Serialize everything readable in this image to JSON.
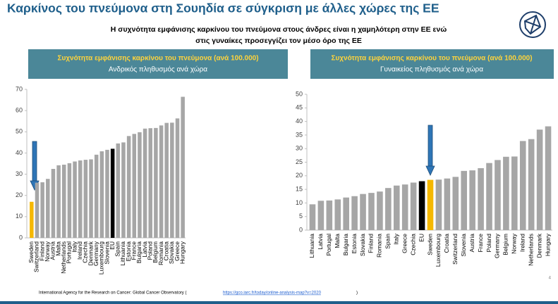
{
  "header": {
    "title": "Καρκίνος του πνεύμονα στη Σουηδία σε σύγκριση με άλλες χώρες της ΕΕ",
    "subtitle_lines": [
      "Η συχνότητα εμφάνισης καρκίνου του πνεύμονα στους άνδρες είναι η χαμηλότερη στην ΕΕ ενώ",
      "στις γυναίκες προσεγγίζει τον μέσο όρο της ΕΕ"
    ]
  },
  "chart_data": [
    {
      "type": "bar",
      "title": "Συχνότητα εμφάνισης καρκίνου του πνεύμονα (ανά 100.000)",
      "subtitle": "Ανδρικός πληθυσμός ανά χώρα",
      "categories": [
        "Sweden",
        "Switzerland",
        "Finland",
        "Norway",
        "Austria",
        "Malta",
        "Netherlands",
        "Portugal",
        "Italy",
        "Ireland",
        "Czechia",
        "Denmark",
        "Germany",
        "Luxembourg",
        "Slovenia",
        "EU",
        "Spain",
        "Lithuania",
        "Estonia",
        "France",
        "Bulgaria",
        "Latvia",
        "Poland",
        "Belgium",
        "Romania",
        "Croatia",
        "Slovakia",
        "Greece",
        "Hungary"
      ],
      "values": [
        17,
        26,
        26.2,
        27.8,
        32.5,
        34.2,
        34.5,
        35.2,
        36,
        36.5,
        36.8,
        37,
        39.2,
        40.8,
        41.5,
        42,
        44.5,
        45,
        48,
        49,
        49.8,
        51.5,
        51.7,
        51.8,
        53,
        54.2,
        54.3,
        56.3,
        66.5
      ],
      "colors": [
        "#f5b800",
        "#a6a6a6",
        "#a6a6a6",
        "#a6a6a6",
        "#a6a6a6",
        "#a6a6a6",
        "#a6a6a6",
        "#a6a6a6",
        "#a6a6a6",
        "#a6a6a6",
        "#a6a6a6",
        "#a6a6a6",
        "#a6a6a6",
        "#a6a6a6",
        "#a6a6a6",
        "#000000",
        "#a6a6a6",
        "#a6a6a6",
        "#a6a6a6",
        "#a6a6a6",
        "#a6a6a6",
        "#a6a6a6",
        "#a6a6a6",
        "#a6a6a6",
        "#a6a6a6",
        "#a6a6a6",
        "#a6a6a6",
        "#a6a6a6",
        "#a6a6a6"
      ],
      "ylim": [
        0,
        70
      ],
      "yticks": [
        0,
        10,
        20,
        30,
        40,
        50,
        60,
        70
      ],
      "grid": false
    },
    {
      "type": "bar",
      "title": "Συχνότητα εμφάνισης καρκίνου του πνεύμονα (ανά 100.000)",
      "subtitle": "Γυναικείος πληθυσμός ανά χώρα",
      "categories": [
        "Lithuania",
        "Latvia",
        "Portugal",
        "Malta",
        "Bulgaria",
        "Estonia",
        "Slovakia",
        "Finland",
        "Romania",
        "Spain",
        "Italy",
        "Greece",
        "Czechia",
        "EU",
        "Sweden",
        "Luxembourg",
        "Croatia",
        "Switzerland",
        "Slovenia",
        "Austria",
        "France",
        "Poland",
        "Germany",
        "Belgium",
        "Norway",
        "Ireland",
        "Netherlands",
        "Denmark",
        "Hungary"
      ],
      "values": [
        9.5,
        10.8,
        10.9,
        11.3,
        12,
        12.5,
        13.3,
        13.7,
        14.2,
        15.5,
        16.4,
        16.8,
        17.5,
        18,
        18.5,
        18.6,
        19,
        19.6,
        21.8,
        22,
        22.8,
        24.7,
        25.8,
        27,
        27.1,
        32.8,
        33.5,
        37,
        38.2
      ],
      "colors": [
        "#a6a6a6",
        "#a6a6a6",
        "#a6a6a6",
        "#a6a6a6",
        "#a6a6a6",
        "#a6a6a6",
        "#a6a6a6",
        "#a6a6a6",
        "#a6a6a6",
        "#a6a6a6",
        "#a6a6a6",
        "#a6a6a6",
        "#a6a6a6",
        "#000000",
        "#f5b800",
        "#a6a6a6",
        "#a6a6a6",
        "#a6a6a6",
        "#a6a6a6",
        "#a6a6a6",
        "#a6a6a6",
        "#a6a6a6",
        "#a6a6a6",
        "#a6a6a6",
        "#a6a6a6",
        "#a6a6a6",
        "#a6a6a6",
        "#a6a6a6",
        "#a6a6a6"
      ],
      "ylim": [
        0,
        50
      ],
      "yticks": [
        0,
        5,
        10,
        15,
        20,
        25,
        30,
        35,
        40,
        45,
        50
      ],
      "grid": false
    }
  ],
  "footer": {
    "source": "International Agency for the Research on Cancer: Global Cancer Observatory (",
    "link": "https://gco.iarc.fr/today/online-analysis-map?v=2020",
    "close": ")",
    "page": "4"
  }
}
